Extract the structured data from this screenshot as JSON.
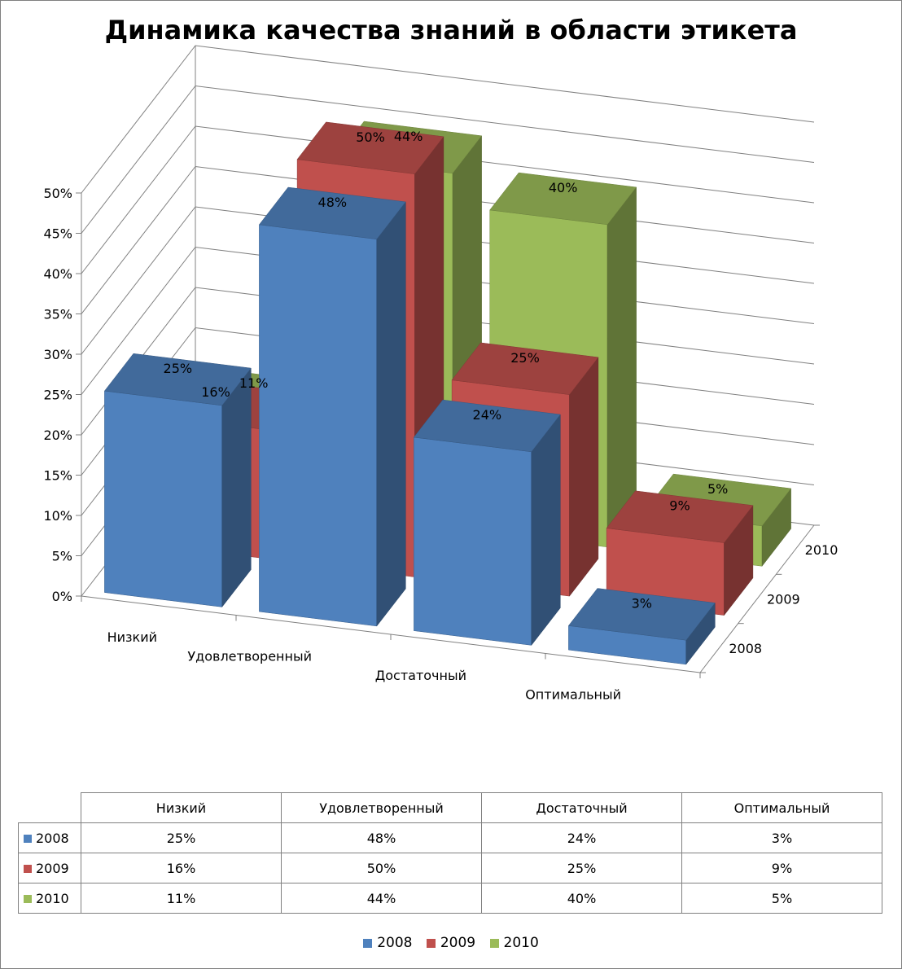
{
  "chart_data": {
    "type": "bar",
    "variant": "3d-column",
    "title": "Динамика качества знаний в области этикета",
    "categories": [
      "Низкий",
      "Удовлетворенный",
      "Достаточный",
      "Оптимальный"
    ],
    "series": [
      {
        "name": "2008",
        "values": [
          25,
          48,
          24,
          3
        ],
        "labels": [
          "25%",
          "48%",
          "24%",
          "3%"
        ],
        "color": "#4f81bd"
      },
      {
        "name": "2009",
        "values": [
          16,
          50,
          25,
          9
        ],
        "labels": [
          "16%",
          "50%",
          "25%",
          "9%"
        ],
        "color": "#c0504d"
      },
      {
        "name": "2010",
        "values": [
          11,
          44,
          40,
          5
        ],
        "labels": [
          "11%",
          "44%",
          "40%",
          "5%"
        ],
        "color": "#9bbb59"
      }
    ],
    "y_ticks": [
      "0%",
      "5%",
      "10%",
      "15%",
      "20%",
      "25%",
      "30%",
      "35%",
      "40%",
      "45%",
      "50%"
    ],
    "ylim": [
      0,
      50
    ],
    "grid": true,
    "legend_position": "bottom",
    "data_table": true
  }
}
